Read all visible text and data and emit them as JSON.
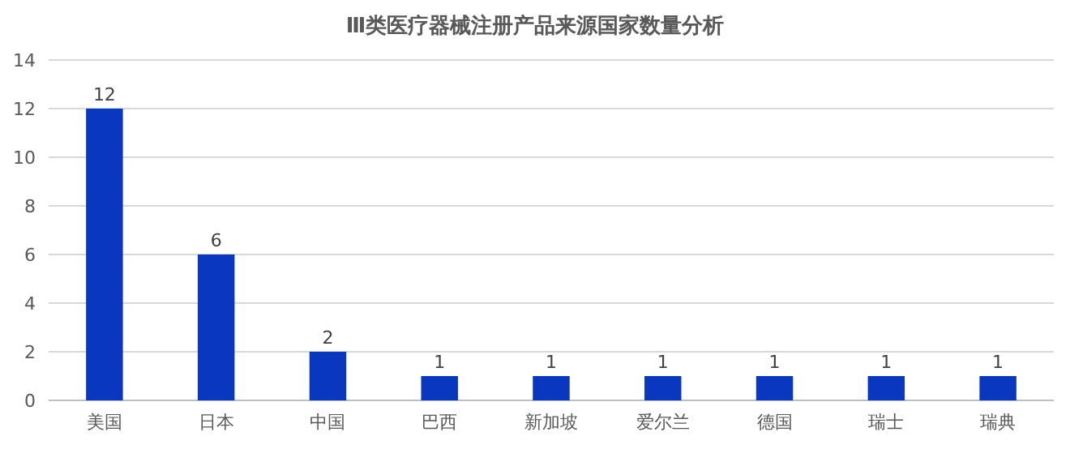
{
  "chart_data": {
    "type": "bar",
    "title": "Ⅲ类医疗器械注册产品来源国家数量分析",
    "categories": [
      "美国",
      "日本",
      "中国",
      "巴西",
      "新加坡",
      "爱尔兰",
      "德国",
      "瑞士",
      "瑞典"
    ],
    "values": [
      12,
      6,
      2,
      1,
      1,
      1,
      1,
      1,
      1
    ],
    "color": "#0a37c0",
    "ylim": [
      0,
      14
    ],
    "yticks": [
      0,
      2,
      4,
      6,
      8,
      10,
      12,
      14
    ],
    "grid": "y",
    "data_labels": true
  }
}
